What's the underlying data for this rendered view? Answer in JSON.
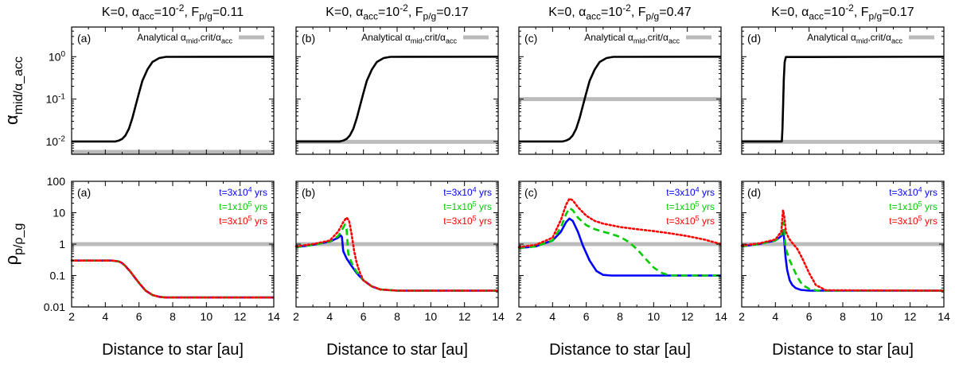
{
  "chart_data": [
    {
      "type": "line",
      "panel": "(a)",
      "row": "top",
      "title": "K=0, α_acc=10^-2, F_p/g=0.11",
      "ylabel": "α_mid/α_acc",
      "yscale": "log",
      "ylim": [
        0.005,
        5
      ],
      "yticks": [
        "10^-2",
        "10^-1",
        "10^0"
      ],
      "legend": "top-right",
      "series": [
        {
          "name": "Analytical α_mid,crit/α_acc",
          "color": "#bbbbbb",
          "x": [
            2,
            14
          ],
          "y": [
            0.0057,
            0.0057
          ]
        },
        {
          "name": "α_mid/α_acc",
          "color": "#000000",
          "x": [
            2,
            4.6,
            4.8,
            5.0,
            5.2,
            5.4,
            5.6,
            5.8,
            6.0,
            6.2,
            6.5,
            6.8,
            7.2,
            7.6,
            14
          ],
          "y": [
            0.01,
            0.01,
            0.0105,
            0.0115,
            0.014,
            0.02,
            0.035,
            0.07,
            0.14,
            0.27,
            0.5,
            0.75,
            0.93,
            0.99,
            1.0
          ]
        }
      ]
    },
    {
      "type": "line",
      "panel": "(b)",
      "row": "top",
      "title": "K=0, α_acc=10^-2, F_p/g=0.17",
      "yscale": "log",
      "ylim": [
        0.005,
        5
      ],
      "legend": "top-right",
      "series": [
        {
          "name": "Analytical α_mid,crit/α_acc",
          "color": "#bbbbbb",
          "x": [
            2,
            14
          ],
          "y": [
            0.0098,
            0.0098
          ]
        },
        {
          "name": "α_mid/α_acc",
          "color": "#000000",
          "x": [
            2,
            4.6,
            4.8,
            5.0,
            5.2,
            5.4,
            5.6,
            5.8,
            6.0,
            6.2,
            6.5,
            6.8,
            7.2,
            7.6,
            14
          ],
          "y": [
            0.01,
            0.01,
            0.0105,
            0.0115,
            0.014,
            0.02,
            0.035,
            0.07,
            0.14,
            0.27,
            0.5,
            0.75,
            0.93,
            0.99,
            1.0
          ]
        }
      ]
    },
    {
      "type": "line",
      "panel": "(c)",
      "row": "top",
      "title": "K=0, α_acc=10^-2, F_p/g=0.47",
      "yscale": "log",
      "ylim": [
        0.005,
        5
      ],
      "legend": "top-right",
      "series": [
        {
          "name": "Analytical α_mid,crit/α_acc",
          "color": "#bbbbbb",
          "x": [
            2,
            14
          ],
          "y": [
            0.1,
            0.1
          ]
        },
        {
          "name": "α_mid/α_acc",
          "color": "#000000",
          "x": [
            2,
            4.6,
            4.8,
            5.0,
            5.2,
            5.4,
            5.6,
            5.8,
            6.0,
            6.2,
            6.5,
            6.8,
            7.2,
            7.6,
            14
          ],
          "y": [
            0.01,
            0.01,
            0.0105,
            0.0115,
            0.014,
            0.02,
            0.035,
            0.07,
            0.14,
            0.27,
            0.5,
            0.75,
            0.93,
            0.99,
            1.0
          ]
        }
      ]
    },
    {
      "type": "line",
      "panel": "(d)",
      "row": "top",
      "title": "K=0, α_acc=10^-2, F_p/g=0.17",
      "yscale": "log",
      "ylim": [
        0.005,
        5
      ],
      "legend": "top-right",
      "series": [
        {
          "name": "Analytical α_mid,crit/α_acc",
          "color": "#bbbbbb",
          "x": [
            2,
            14
          ],
          "y": [
            0.0098,
            0.0098
          ]
        },
        {
          "name": "α_mid/α_acc",
          "color": "#000000",
          "x": [
            2,
            4.38,
            4.42,
            4.46,
            4.5,
            4.55,
            4.62,
            14
          ],
          "y": [
            0.01,
            0.01,
            0.02,
            0.08,
            0.3,
            0.75,
            0.98,
            1.0
          ]
        }
      ]
    },
    {
      "type": "line",
      "panel": "(a)",
      "row": "bottom",
      "xlabel": "Distance to star [au]",
      "ylabel": "ρ_p/ρ_g",
      "yscale": "log",
      "ylim": [
        0.01,
        100
      ],
      "xlim": [
        2,
        14
      ],
      "xticks": [
        2,
        4,
        6,
        8,
        10,
        12,
        14
      ],
      "yticks": [
        "0.01",
        "0.1",
        "1",
        "10",
        "100"
      ],
      "legend": "top-right",
      "series": [
        {
          "name": "ρ_p/ρ_g = 1",
          "color": "#bbbbbb",
          "x": [
            2,
            14
          ],
          "y": [
            1,
            1
          ]
        },
        {
          "name": "t=3x10^4 yrs",
          "color": "#0000ff",
          "x": [
            2,
            4.4,
            4.8,
            5.0,
            5.2,
            5.5,
            5.8,
            6.1,
            6.4,
            6.8,
            7.2,
            7.6,
            14
          ],
          "y": [
            0.3,
            0.3,
            0.28,
            0.25,
            0.2,
            0.13,
            0.08,
            0.05,
            0.033,
            0.024,
            0.021,
            0.02,
            0.02
          ]
        },
        {
          "name": "t=1x10^5 yrs",
          "color": "#00cc00",
          "x": [
            2,
            4.4,
            4.8,
            5.0,
            5.2,
            5.5,
            5.8,
            6.1,
            6.4,
            6.8,
            7.2,
            7.6,
            14
          ],
          "y": [
            0.3,
            0.3,
            0.28,
            0.25,
            0.2,
            0.13,
            0.08,
            0.05,
            0.033,
            0.024,
            0.021,
            0.02,
            0.02
          ]
        },
        {
          "name": "t=3x10^5 yrs",
          "color": "#ff0000",
          "x": [
            2,
            4.4,
            4.8,
            5.0,
            5.2,
            5.5,
            5.8,
            6.1,
            6.4,
            6.8,
            7.2,
            7.6,
            14
          ],
          "y": [
            0.3,
            0.3,
            0.28,
            0.25,
            0.2,
            0.13,
            0.08,
            0.05,
            0.033,
            0.024,
            0.021,
            0.02,
            0.02
          ]
        }
      ]
    },
    {
      "type": "line",
      "panel": "(b)",
      "row": "bottom",
      "xlabel": "Distance to star [au]",
      "yscale": "log",
      "ylim": [
        0.01,
        100
      ],
      "xlim": [
        2,
        14
      ],
      "legend": "top-right",
      "series": [
        {
          "name": "ρ_p/ρ_g = 1",
          "color": "#bbbbbb",
          "x": [
            2,
            14
          ],
          "y": [
            1,
            1
          ]
        },
        {
          "name": "t=3x10^4 yrs",
          "color": "#0000ff",
          "x": [
            2,
            3,
            4,
            4.5,
            4.65,
            4.72,
            4.8,
            5.0,
            5.3,
            5.6,
            6.0,
            6.5,
            7.0,
            8,
            14
          ],
          "y": [
            0.8,
            0.95,
            1.2,
            1.6,
            1.9,
            1.7,
            0.6,
            0.35,
            0.2,
            0.12,
            0.07,
            0.045,
            0.036,
            0.033,
            0.033
          ]
        },
        {
          "name": "t=1x10^5 yrs",
          "color": "#00cc00",
          "x": [
            2,
            3,
            4,
            4.5,
            4.75,
            4.9,
            5.0,
            5.1,
            5.3,
            5.6,
            6.0,
            6.5,
            7.0,
            8,
            14
          ],
          "y": [
            0.8,
            0.95,
            1.2,
            1.8,
            3.0,
            4.2,
            3.0,
            0.5,
            0.25,
            0.13,
            0.07,
            0.045,
            0.036,
            0.033,
            0.033
          ]
        },
        {
          "name": "t=3x10^5 yrs",
          "color": "#ff0000",
          "x": [
            2,
            3,
            4,
            4.5,
            4.8,
            5.0,
            5.15,
            5.3,
            5.45,
            5.6,
            5.8,
            6.0,
            6.5,
            7.0,
            8,
            14
          ],
          "y": [
            0.85,
            1.0,
            1.3,
            2.5,
            5.0,
            7.0,
            5.5,
            2.0,
            0.6,
            0.25,
            0.12,
            0.07,
            0.045,
            0.036,
            0.033,
            0.033
          ]
        }
      ]
    },
    {
      "type": "line",
      "panel": "(c)",
      "row": "bottom",
      "xlabel": "Distance to star [au]",
      "yscale": "log",
      "ylim": [
        0.01,
        100
      ],
      "xlim": [
        2,
        14
      ],
      "legend": "top-right",
      "series": [
        {
          "name": "ρ_p/ρ_g = 1",
          "color": "#bbbbbb",
          "x": [
            2,
            14
          ],
          "y": [
            1,
            1
          ]
        },
        {
          "name": "t=3x10^4 yrs",
          "color": "#0000ff",
          "x": [
            2,
            3,
            4,
            4.5,
            4.8,
            5.0,
            5.2,
            5.5,
            5.8,
            6.2,
            6.6,
            7.0,
            7.5,
            8,
            14
          ],
          "y": [
            0.75,
            0.85,
            1.3,
            2.5,
            5.0,
            6.5,
            5.5,
            2.5,
            0.9,
            0.3,
            0.14,
            0.105,
            0.1,
            0.1,
            0.1
          ]
        },
        {
          "name": "t=1x10^5 yrs",
          "color": "#00cc00",
          "x": [
            2,
            3,
            4,
            4.5,
            4.8,
            5.0,
            5.2,
            5.5,
            6.0,
            6.5,
            7.0,
            7.5,
            8.0,
            8.5,
            9.0,
            9.5,
            10.0,
            10.5,
            11.0,
            12,
            14
          ],
          "y": [
            0.75,
            0.85,
            1.3,
            3.5,
            9.0,
            14.0,
            12.0,
            7.0,
            4.0,
            3.0,
            2.5,
            2.1,
            1.7,
            1.2,
            0.7,
            0.35,
            0.18,
            0.12,
            0.1,
            0.1,
            0.1
          ]
        },
        {
          "name": "t=3x10^5 yrs",
          "color": "#ff0000",
          "x": [
            2,
            3,
            4,
            4.5,
            4.8,
            5.0,
            5.2,
            5.5,
            6.0,
            6.5,
            7.0,
            8.0,
            9.0,
            10.0,
            11.0,
            12.0,
            13.0,
            14.0
          ],
          "y": [
            0.8,
            0.95,
            1.6,
            6.0,
            18.0,
            28.0,
            25.0,
            15.0,
            8.0,
            5.5,
            4.5,
            3.5,
            3.0,
            2.6,
            2.2,
            1.8,
            1.4,
            1.0
          ]
        }
      ]
    },
    {
      "type": "line",
      "panel": "(d)",
      "row": "bottom",
      "xlabel": "Distance to star [au]",
      "yscale": "log",
      "ylim": [
        0.01,
        100
      ],
      "xlim": [
        2,
        14
      ],
      "legend": "top-right",
      "series": [
        {
          "name": "ρ_p/ρ_g = 1",
          "color": "#bbbbbb",
          "x": [
            2,
            14
          ],
          "y": [
            1,
            1
          ]
        },
        {
          "name": "t=3x10^4 yrs",
          "color": "#0000ff",
          "x": [
            2,
            3,
            4,
            4.35,
            4.45,
            4.52,
            4.6,
            4.7,
            4.85,
            5.0,
            5.2,
            5.5,
            6.0,
            14
          ],
          "y": [
            0.85,
            1.0,
            1.3,
            1.8,
            2.8,
            1.5,
            0.4,
            0.15,
            0.07,
            0.05,
            0.04,
            0.035,
            0.033,
            0.033
          ]
        },
        {
          "name": "t=1x10^5 yrs",
          "color": "#00cc00",
          "x": [
            2,
            3,
            4,
            4.35,
            4.45,
            4.52,
            4.6,
            4.8,
            5.0,
            5.3,
            5.6,
            6.0,
            6.5,
            14
          ],
          "y": [
            0.85,
            1.0,
            1.3,
            2.0,
            5.0,
            3.0,
            0.8,
            0.35,
            0.2,
            0.09,
            0.05,
            0.038,
            0.033,
            0.033
          ]
        },
        {
          "name": "t=3x10^5 yrs",
          "color": "#ff0000",
          "x": [
            2,
            3,
            4,
            4.35,
            4.45,
            4.52,
            4.62,
            4.8,
            5.0,
            5.3,
            5.6,
            6.0,
            6.4,
            7.0,
            14
          ],
          "y": [
            0.9,
            1.05,
            1.4,
            2.5,
            12.0,
            8.0,
            2.5,
            1.5,
            1.1,
            0.7,
            0.35,
            0.12,
            0.05,
            0.034,
            0.033
          ]
        }
      ]
    }
  ]
}
